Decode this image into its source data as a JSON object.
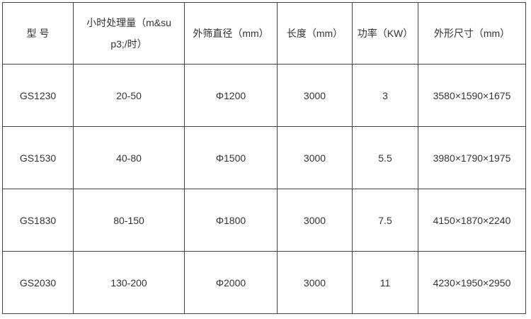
{
  "headers": [
    "型 号",
    "小时处理量（m&sup3;/时）",
    "外筛直径（mm）",
    "长度（mm）",
    "功率（KW）",
    "外形尺寸（mm）"
  ],
  "header_lines": {
    "col1_line1": "小时处理量（m&su",
    "col1_line2": "p3;/时）"
  },
  "rows": [
    [
      "GS1230",
      "20-50",
      "Φ1200",
      "3000",
      "3",
      "3580×1590×1675"
    ],
    [
      "GS1530",
      "40-80",
      "Φ1500",
      "3000",
      "5.5",
      "3980×1790×1975"
    ],
    [
      "GS1830",
      "80-150",
      "Φ1800",
      "3000",
      "7.5",
      "4150×1870×2240"
    ],
    [
      "GS2030",
      "130-200",
      "Φ2000",
      "3000",
      "11",
      "4230×1950×2950"
    ]
  ]
}
